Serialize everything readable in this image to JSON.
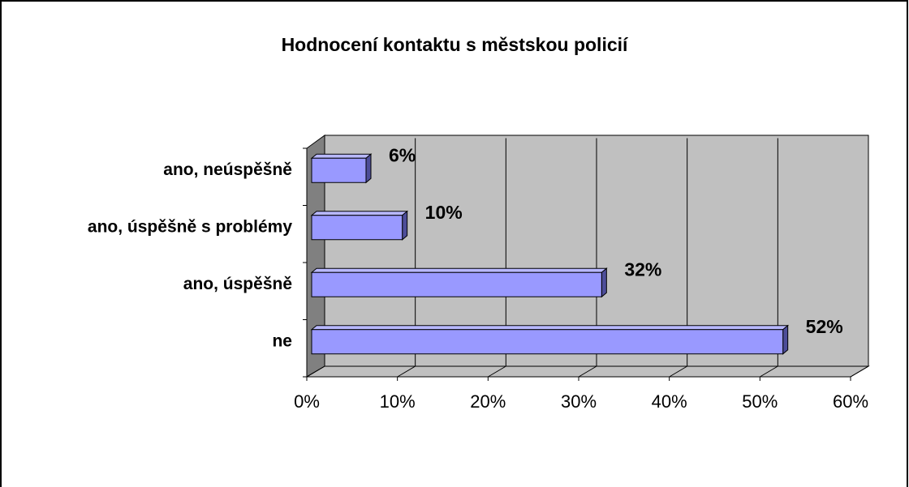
{
  "chart_data": {
    "type": "bar3d_horizontal",
    "title": "Hodnocení kontaktu s městskou policií",
    "categories": [
      "ne",
      "ano, úspěšně",
      "ano, úspěšně s problémy",
      "ano, neúspěšně"
    ],
    "values": [
      52,
      32,
      10,
      6
    ],
    "value_labels": [
      "52%",
      "32%",
      "10%",
      "6%"
    ],
    "color": "#9999ff",
    "xlim": [
      0,
      60
    ],
    "xticks": [
      {
        "value": 0,
        "label": "0%"
      },
      {
        "value": 10,
        "label": "10%"
      },
      {
        "value": 20,
        "label": "20%"
      },
      {
        "value": 30,
        "label": "30%"
      },
      {
        "value": 40,
        "label": "40%"
      },
      {
        "value": 50,
        "label": "50%"
      },
      {
        "value": 60,
        "label": "60%"
      }
    ],
    "grid": true
  }
}
